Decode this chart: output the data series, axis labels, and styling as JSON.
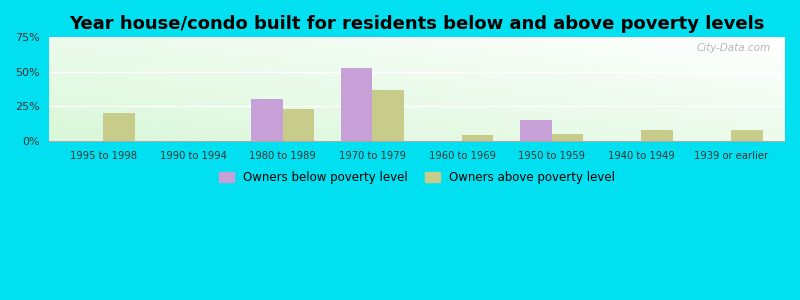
{
  "title": "Year house/condo built for residents below and above poverty levels",
  "categories": [
    "1995 to 1998",
    "1990 to 1994",
    "1980 to 1989",
    "1970 to 1979",
    "1960 to 1969",
    "1950 to 1959",
    "1940 to 1949",
    "1939 or earlier"
  ],
  "below_poverty": [
    0,
    0,
    30,
    53,
    0,
    15,
    0,
    0
  ],
  "above_poverty": [
    20,
    0,
    23,
    37,
    4,
    5,
    8,
    8
  ],
  "below_color": "#c8a0d8",
  "above_color": "#c8cc8a",
  "ylim": [
    0,
    75
  ],
  "yticks": [
    0,
    25,
    50,
    75
  ],
  "ytick_labels": [
    "0%",
    "25%",
    "50%",
    "75%"
  ],
  "legend_below": "Owners below poverty level",
  "legend_above": "Owners above poverty level",
  "outer_bg": "#00e0f0",
  "title_fontsize": 13,
  "bar_width": 0.35,
  "watermark": "City-Data.com"
}
